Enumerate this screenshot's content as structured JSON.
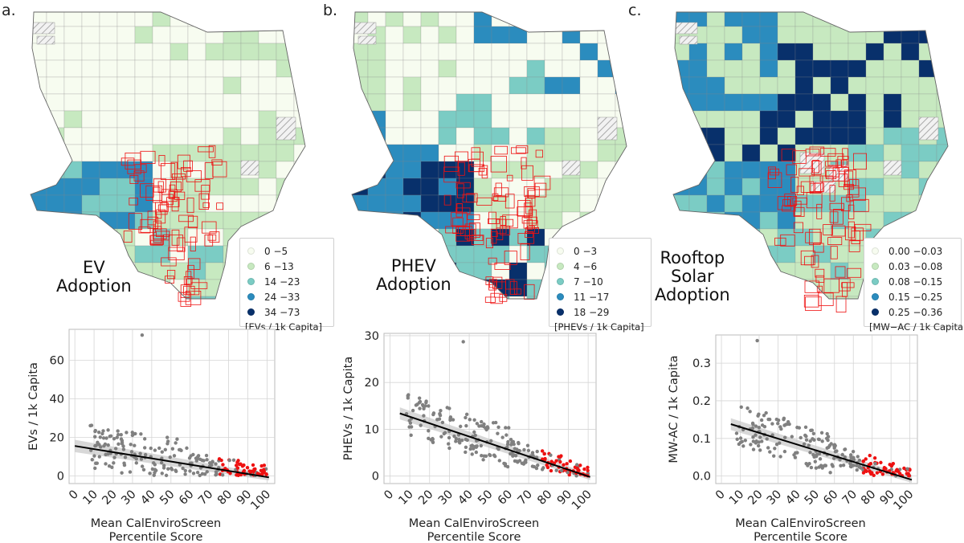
{
  "colors": {
    "bin1": "#f7fcf0",
    "bin2": "#c7e9c0",
    "bin3": "#7bccc4",
    "bin4": "#2b8cbe",
    "bin5": "#08306b",
    "boundary_dac": "#ee1111",
    "missing_hatch": "#aaaaaa",
    "point_dac": "#ee1111",
    "point_other": "#808080",
    "fit_line": "#000000",
    "ci_band": "#c8c8c8"
  },
  "panels": [
    {
      "letter": "a.",
      "map_title": [
        "EV",
        "Adoption"
      ],
      "legend": {
        "items": [
          "0 −5",
          "6 −13",
          "14 −23",
          "24 −33",
          "34 −73"
        ],
        "unit": "[EVs / 1k Capita]"
      }
    },
    {
      "letter": "b.",
      "map_title": [
        "PHEV",
        "Adoption"
      ],
      "legend": {
        "items": [
          "0 −3",
          "4 −6",
          "7 −10",
          "11 −17",
          "18 −29"
        ],
        "unit": "[PHEVs / 1k Capita]"
      }
    },
    {
      "letter": "c.",
      "map_title": [
        "Rooftop",
        "Solar",
        "Adoption"
      ],
      "legend": {
        "items": [
          "0.00 −0.03",
          "0.03 −0.08",
          "0.08 −0.15",
          "0.15 −0.25",
          "0.25 −0.36"
        ],
        "unit": "[MW−AC / 1k Capita"
      }
    }
  ],
  "chart_data": [
    {
      "type": "scatter",
      "xlabel": [
        "Mean CalEnviroScreen",
        "Percentile Score"
      ],
      "ylabel": "EVs / 1k Capita",
      "xlim": [
        -3,
        104
      ],
      "ylim": [
        -4,
        76
      ],
      "xticks": [
        0,
        10,
        20,
        30,
        40,
        50,
        60,
        70,
        80,
        90,
        100
      ],
      "yticks": [
        0,
        20,
        40,
        60
      ],
      "ytick_labels": [
        "0",
        "20",
        "40",
        "60"
      ],
      "fit": {
        "x": [
          0,
          101
        ],
        "y": [
          15.5,
          -0.8
        ]
      },
      "dac_threshold": 75,
      "ymax": 73
    },
    {
      "type": "scatter",
      "xlabel": [
        "Mean CalEnviroScreen",
        "Percentile Score"
      ],
      "ylabel": "PHEVs / 1k Capita",
      "xlim": [
        -3,
        104
      ],
      "ylim": [
        -1.6,
        30.5
      ],
      "xticks": [
        0,
        10,
        20,
        30,
        40,
        50,
        60,
        70,
        80,
        90,
        100
      ],
      "yticks": [
        0,
        10,
        20,
        30
      ],
      "ytick_labels": [
        "0",
        "10",
        "20",
        "30"
      ],
      "fit": {
        "x": [
          5,
          101
        ],
        "y": [
          13.4,
          -0.2
        ]
      },
      "dac_threshold": 75,
      "ymax": 28.7
    },
    {
      "type": "scatter",
      "xlabel": [
        "Mean CalEnviroScreen",
        "Percentile Score"
      ],
      "ylabel": "MW-AC / 1k Capita",
      "xlim": [
        -3,
        104
      ],
      "ylim": [
        -0.02,
        0.375
      ],
      "xticks": [
        0,
        10,
        20,
        30,
        40,
        50,
        60,
        70,
        80,
        90,
        100
      ],
      "yticks": [
        0.0,
        0.1,
        0.2,
        0.3
      ],
      "ytick_labels": [
        "0.0",
        "0.1",
        "0.2",
        "0.3"
      ],
      "fit": {
        "x": [
          5,
          101
        ],
        "y": [
          0.138,
          -0.01
        ]
      },
      "dac_threshold": 75,
      "ymax": 0.36
    }
  ]
}
